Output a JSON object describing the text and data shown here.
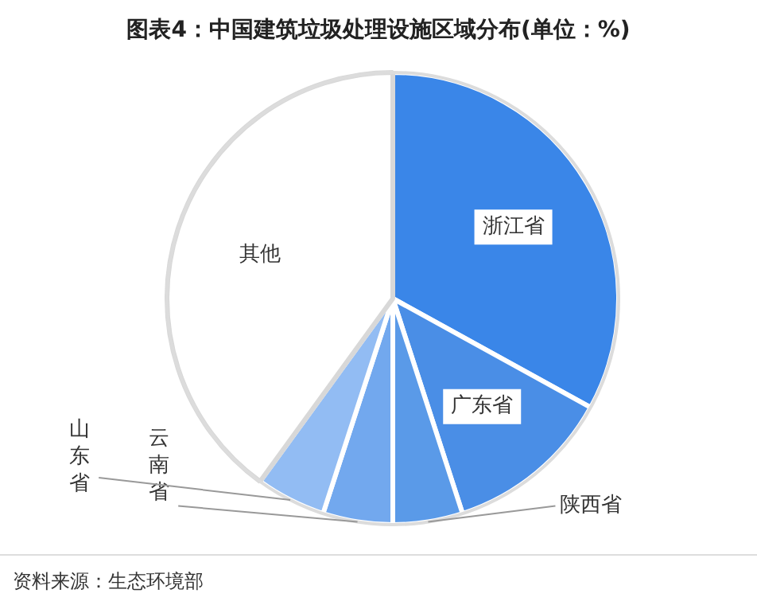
{
  "chart_data": {
    "type": "pie",
    "title": "图表4：中国建筑垃圾处理设施区域分布(单位：%)",
    "categories": [
      "浙江省",
      "广东省",
      "陕西省",
      "云南省",
      "山东省",
      "其他"
    ],
    "values": [
      33,
      12,
      5,
      5,
      5,
      40
    ],
    "colors": [
      "#3a86e8",
      "#4a8ee6",
      "#5a9ae8",
      "#72a8ee",
      "#92bcf3",
      "#ffffff"
    ],
    "annotations": [
      "资料来源：生态环境部"
    ]
  }
}
